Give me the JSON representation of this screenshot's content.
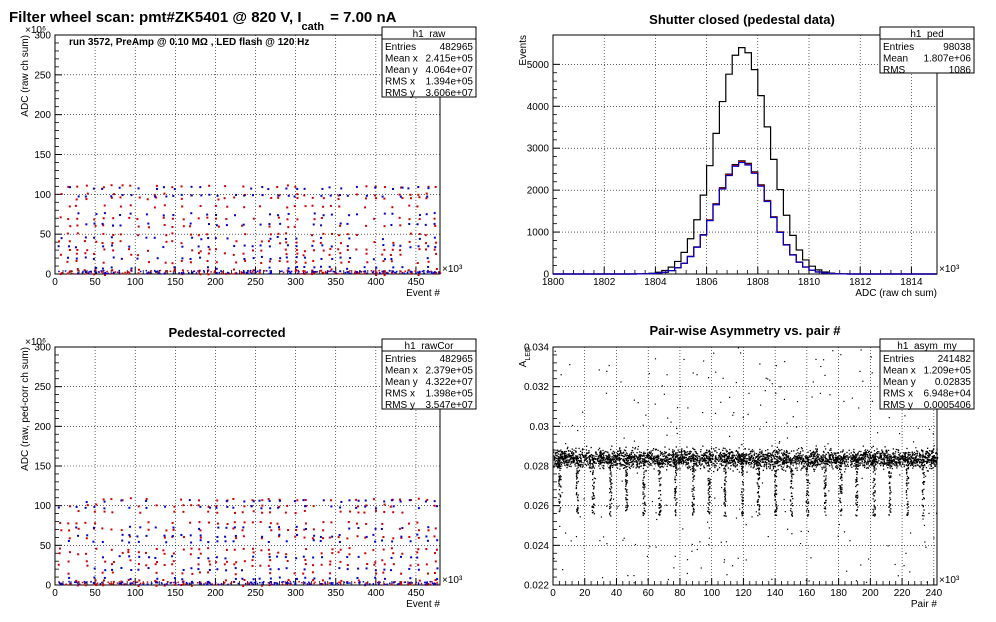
{
  "chart_data": [
    {
      "id": "raw",
      "type": "scatter",
      "title": "Filter wheel scan: pmt#ZK5401 @   820 V, I",
      "title_sub": "cath",
      "title_tail": "= 7.00 nA",
      "annotation": "run 3572, PreAmp @ 0.10 MΩ , LED flash @  120 Hz",
      "xlabel": "Event #",
      "ylabel": "ADC (raw ch sum)",
      "x_multiplier": "×10³",
      "y_multiplier": "×10⁶",
      "xlim": [
        0,
        480
      ],
      "ylim": [
        0,
        300
      ],
      "x_ticks": [
        "0",
        "50",
        "100",
        "150",
        "200",
        "250",
        "300",
        "350",
        "400",
        "450"
      ],
      "y_ticks": [
        "0",
        "50",
        "100",
        "150",
        "200",
        "250",
        "300"
      ],
      "grid": true,
      "stats": {
        "name": "h1_raw",
        "rows": [
          [
            "Entries",
            "482965"
          ],
          [
            "Mean x",
            "2.415e+05"
          ],
          [
            "Mean y",
            "4.064e+07"
          ],
          [
            "RMS x",
            "1.394e+05"
          ],
          [
            "RMS y",
            "3.606e+07"
          ]
        ]
      },
      "series": [
        {
          "levels": [
            110,
            100,
            95,
            85,
            70,
            60,
            50,
            40,
            30,
            25,
            15,
            5,
            0
          ],
          "color": "#d00000"
        },
        {
          "levels": [
            108,
            98,
            75,
            62,
            45,
            35,
            20,
            8,
            2
          ],
          "color": "#0000cc"
        }
      ]
    },
    {
      "id": "ped",
      "type": "area",
      "title": "Shutter closed (pedestal data)",
      "xlabel": "ADC (raw ch sum)",
      "ylabel": "Events",
      "x_multiplier": "×10³",
      "xlim": [
        1800,
        1815
      ],
      "ylim": [
        0,
        5700
      ],
      "x_ticks": [
        "1800",
        "1802",
        "1804",
        "1806",
        "1808",
        "1810",
        "1812",
        "1814"
      ],
      "y_ticks": [
        "0",
        "1000",
        "2000",
        "3000",
        "4000",
        "5000"
      ],
      "grid": true,
      "stats": {
        "name": "h1_ped",
        "rows": [
          [
            "Entries",
            "98038"
          ],
          [
            "Mean",
            "1.807e+06"
          ],
          [
            "RMS",
            "1086"
          ]
        ]
      },
      "series": [
        {
          "peak": 5400,
          "mean": 1807.4,
          "sigma": 1.05,
          "color": "#000000"
        },
        {
          "peak": 2700,
          "mean": 1807.4,
          "sigma": 1.05,
          "color": "#000000"
        },
        {
          "peak": 2680,
          "mean": 1807.4,
          "sigma": 1.05,
          "color": "#cc0000"
        },
        {
          "peak": 2660,
          "mean": 1807.4,
          "sigma": 1.05,
          "color": "#0000cc"
        }
      ]
    },
    {
      "id": "rawcor",
      "type": "scatter",
      "title": "Pedestal-corrected",
      "xlabel": "Event #",
      "ylabel": "ADC (raw, ped-corr ch sum)",
      "x_multiplier": "×10³",
      "y_multiplier": "×10⁶",
      "xlim": [
        0,
        480
      ],
      "ylim": [
        0,
        300
      ],
      "x_ticks": [
        "0",
        "50",
        "100",
        "150",
        "200",
        "250",
        "300",
        "350",
        "400",
        "450"
      ],
      "y_ticks": [
        "0",
        "50",
        "100",
        "150",
        "200",
        "250",
        "300"
      ],
      "grid": true,
      "stats": {
        "name": "h1_rawCor",
        "rows": [
          [
            "Entries",
            "482965"
          ],
          [
            "Mean x",
            "2.379e+05"
          ],
          [
            "Mean y",
            "4.322e+07"
          ],
          [
            "RMS x",
            "1.398e+05"
          ],
          [
            "RMS y",
            "3.547e+07"
          ]
        ]
      },
      "series": [
        {
          "levels": [
            108,
            100,
            92,
            78,
            70,
            60,
            45,
            40,
            30,
            25,
            15,
            5,
            0
          ],
          "color": "#d00000"
        },
        {
          "levels": [
            106,
            98,
            72,
            62,
            55,
            35,
            20,
            8,
            2
          ],
          "color": "#0000cc"
        }
      ]
    },
    {
      "id": "asym",
      "type": "scatter",
      "title": "Pair-wise Asymmetry vs. pair #",
      "xlabel": "Pair #",
      "ylabel": "A",
      "ylabel_sub": "LED",
      "x_multiplier": "×10³",
      "xlim": [
        0,
        242
      ],
      "ylim": [
        0.022,
        0.034
      ],
      "x_ticks": [
        "0",
        "20",
        "40",
        "60",
        "80",
        "100",
        "120",
        "140",
        "160",
        "180",
        "200",
        "220",
        "240"
      ],
      "y_ticks": [
        "0.022",
        "0.024",
        "0.026",
        "0.028",
        "0.03",
        "0.032",
        "0.034"
      ],
      "grid": true,
      "stats": {
        "name": "h1_asym_my",
        "rows": [
          [
            "Entries",
            "241482"
          ],
          [
            "Mean x",
            "1.209e+05"
          ],
          [
            "Mean y",
            "0.02835"
          ],
          [
            "RMS x",
            "6.948e+04"
          ],
          [
            "RMS y",
            "0.0005406"
          ]
        ]
      },
      "series": [
        {
          "band_center": 0.0284,
          "band_halfwidth": 0.0006,
          "dips_at": [
            4,
            15,
            25,
            36,
            46,
            57,
            67,
            77,
            88,
            98,
            108,
            119,
            129,
            140,
            150,
            160,
            171,
            181,
            191,
            202,
            212,
            223,
            233
          ],
          "dip_min": 0.0255,
          "color": "#000000"
        }
      ]
    }
  ]
}
